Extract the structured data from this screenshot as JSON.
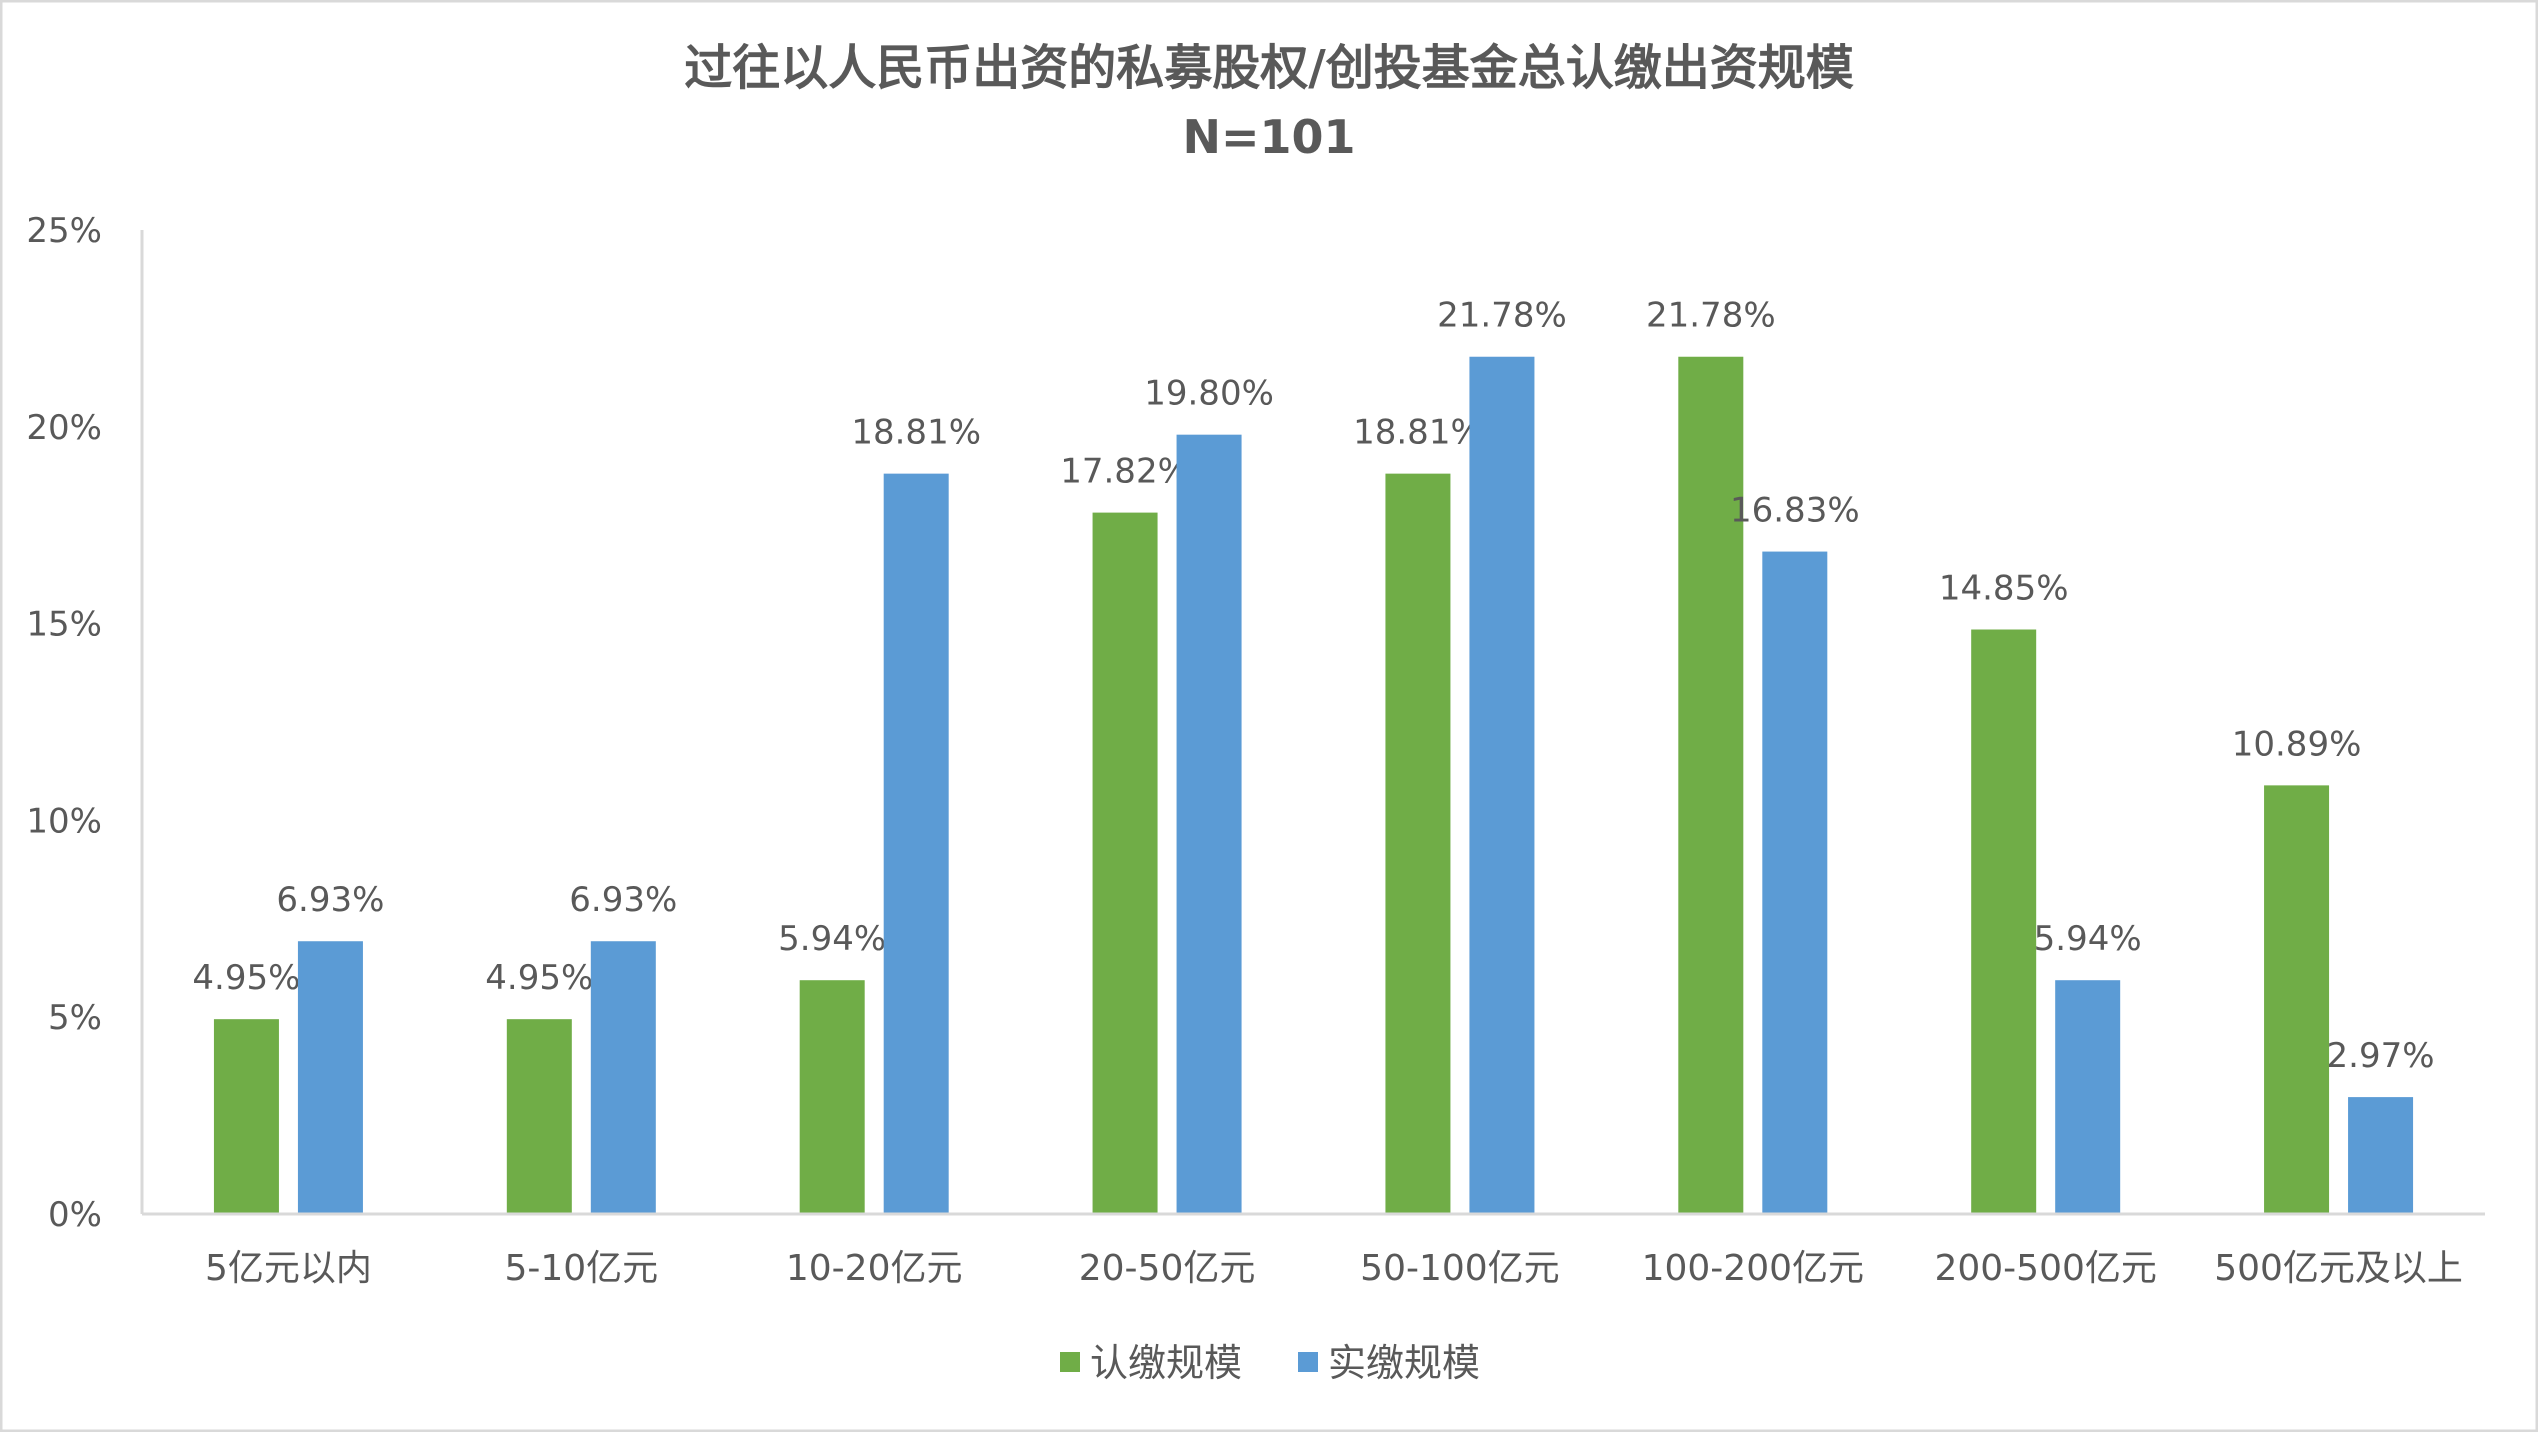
{
  "chart_data": {
    "type": "bar",
    "title": "过往以人民币出资的私募股权/创投基金总认缴出资规模",
    "subtitle": "N=101",
    "xlabel": "",
    "ylabel": "",
    "categories": [
      "5亿元以内",
      "5-10亿元",
      "10-20亿元",
      "20-50亿元",
      "50-100亿元",
      "100-200亿元",
      "200-500亿元",
      "500亿元及以上"
    ],
    "series": [
      {
        "name": "认缴规模",
        "color": "#70AD47",
        "values": [
          4.95,
          4.95,
          5.94,
          17.82,
          18.81,
          21.78,
          14.85,
          10.89
        ]
      },
      {
        "name": "实缴规模",
        "color": "#5B9BD5",
        "values": [
          6.93,
          6.93,
          18.81,
          19.8,
          21.78,
          16.83,
          5.94,
          2.97
        ]
      }
    ],
    "value_format": "percent_2dp",
    "ylim": [
      0,
      25
    ],
    "yticks": [
      "0%",
      "5%",
      "10%",
      "15%",
      "20%",
      "25%"
    ],
    "grid": false,
    "legend": "bottom"
  }
}
